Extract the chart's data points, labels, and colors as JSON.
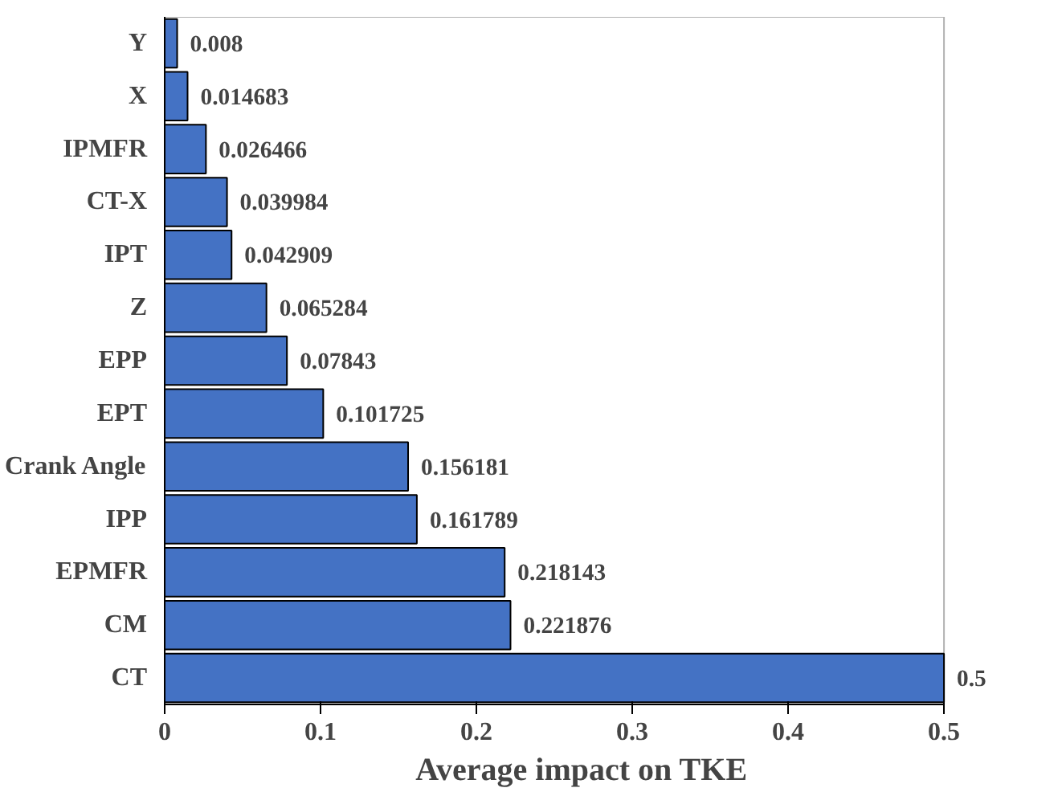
{
  "chart_data": {
    "type": "bar",
    "orientation": "horizontal",
    "xlabel": "Average impact on TKE",
    "categories": [
      "Y",
      "X",
      "IPMFR",
      "CT-X",
      "IPT",
      "Z",
      "EPP",
      "EPT",
      "Crank Angle",
      "IPP",
      "EPMFR",
      "CM",
      "CT"
    ],
    "values": [
      0.008,
      0.014683,
      0.026466,
      0.039984,
      0.042909,
      0.065284,
      0.07843,
      0.101725,
      0.156181,
      0.161789,
      0.218143,
      0.221876,
      0.5
    ],
    "color": "#4472c4",
    "data_labels": true,
    "grid": false,
    "legend": false,
    "xlim": [
      0,
      0.5
    ],
    "xticks": [
      0,
      0.1,
      0.2,
      0.3,
      0.4,
      0.5
    ]
  }
}
